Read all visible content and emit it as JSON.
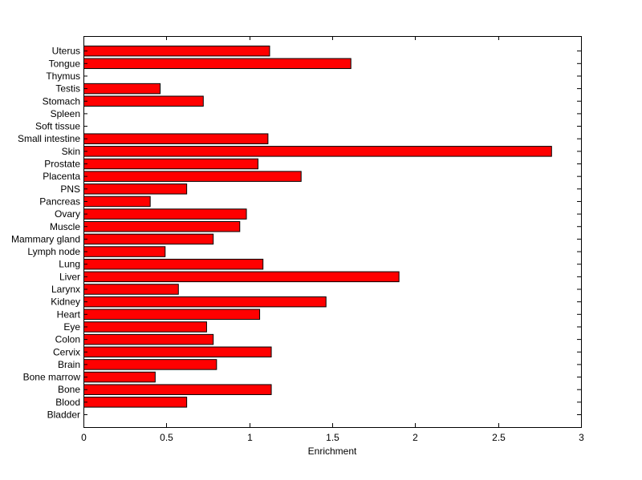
{
  "chart_data": {
    "type": "bar",
    "orientation": "horizontal",
    "categories": [
      "Bladder",
      "Blood",
      "Bone",
      "Bone marrow",
      "Brain",
      "Cervix",
      "Colon",
      "Eye",
      "Heart",
      "Kidney",
      "Larynx",
      "Liver",
      "Lung",
      "Lymph node",
      "Mammary gland",
      "Muscle",
      "Ovary",
      "Pancreas",
      "PNS",
      "Placenta",
      "Prostate",
      "Skin",
      "Small intestine",
      "Soft tissue",
      "Spleen",
      "Stomach",
      "Testis",
      "Thymus",
      "Tongue",
      "Uterus"
    ],
    "values": [
      0,
      0.62,
      1.13,
      0.43,
      0.8,
      1.13,
      0.78,
      0.74,
      1.06,
      1.46,
      0.57,
      1.9,
      1.08,
      0.49,
      0.78,
      0.94,
      0.98,
      0.4,
      0.62,
      1.31,
      1.05,
      2.82,
      1.11,
      0,
      0,
      0.72,
      0.46,
      0,
      1.61,
      1.12
    ],
    "xlabel": "Enrichment",
    "ylabel": "",
    "title": "",
    "xlim": [
      0,
      3
    ],
    "xticks": [
      0,
      0.5,
      1,
      1.5,
      2,
      2.5,
      3
    ],
    "xtick_labels": [
      "0",
      "0.5",
      "1",
      "1.5",
      "2",
      "2.5",
      "3"
    ],
    "grid": false,
    "legend": "none",
    "bar_color": "#ff0000",
    "bar_edge_color": "#000000"
  }
}
